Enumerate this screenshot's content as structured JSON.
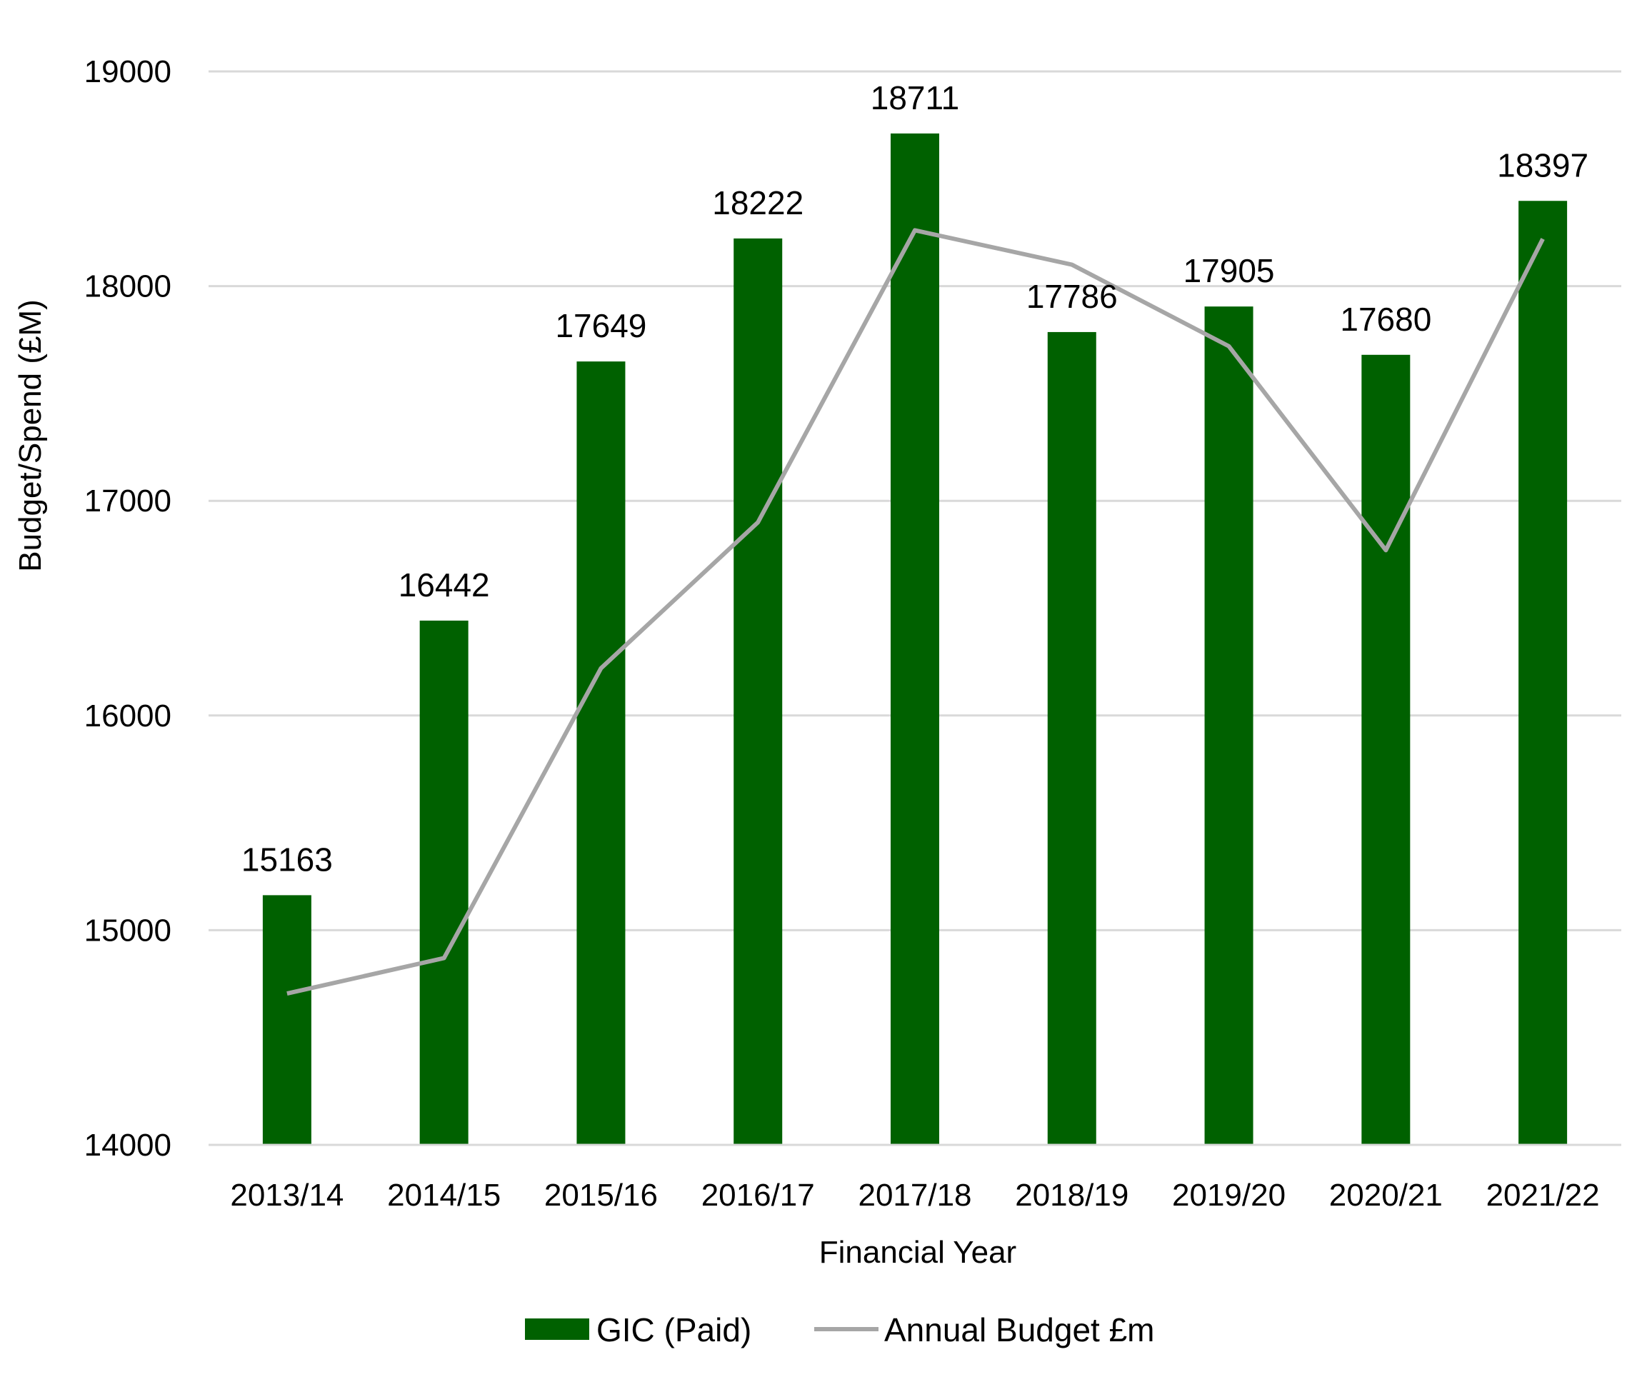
{
  "chart_data": {
    "type": "bar",
    "xlabel": "Financial Year",
    "ylabel": "Budget/Spend (£M)",
    "ylim": [
      14000,
      19000
    ],
    "yticks": [
      14000,
      15000,
      16000,
      17000,
      18000,
      19000
    ],
    "grid": true,
    "legend_position": "bottom",
    "categories": [
      "2013/14",
      "2014/15",
      "2015/16",
      "2016/17",
      "2017/18",
      "2018/19",
      "2019/20",
      "2020/21",
      "2021/22"
    ],
    "series": [
      {
        "name": "GIC (Paid)",
        "type": "bar",
        "color": "#006100",
        "values": [
          15163,
          16442,
          17649,
          18222,
          18711,
          17786,
          17905,
          17680,
          18397
        ],
        "labels": [
          "15163",
          "16442",
          "17649",
          "18222",
          "18711",
          "17786",
          "17905",
          "17680",
          "18397"
        ]
      },
      {
        "name": "Annual Budget £m",
        "type": "line",
        "color": "#a6a6a6",
        "values": [
          14705,
          14870,
          16220,
          16900,
          18260,
          18100,
          17720,
          16770,
          18220
        ]
      }
    ]
  }
}
